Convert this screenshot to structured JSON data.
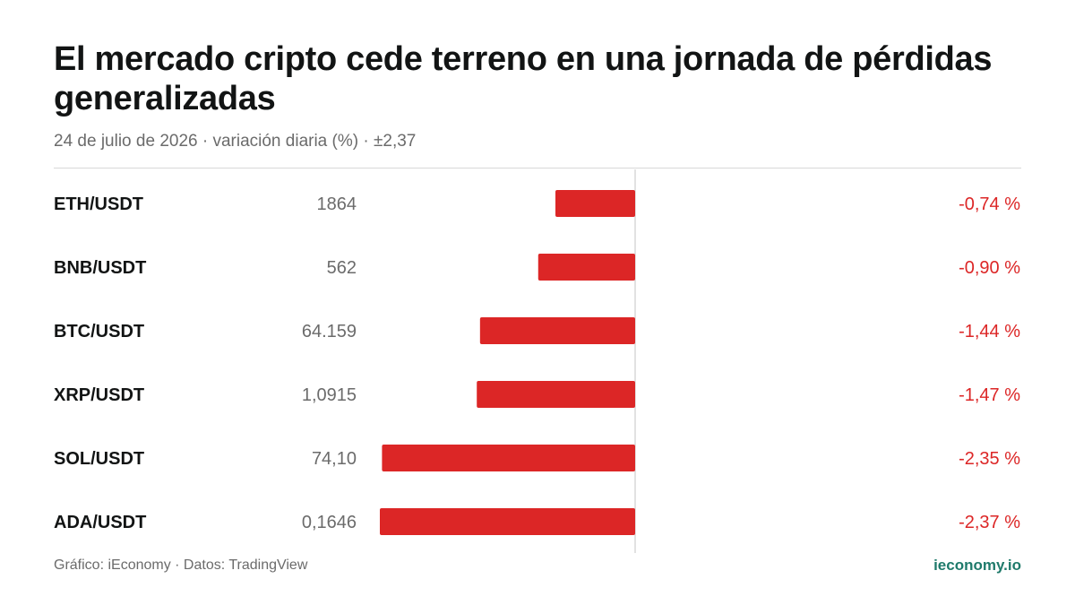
{
  "title": "El mercado cripto cede terreno en una jornada de pérdidas generalizadas",
  "subtitle": "24 de julio de 2026 · variación diaria (%) · ±2,37",
  "footer": {
    "source": "Gráfico: iEconomy · Datos: TradingView",
    "brand": "ieconomy.io"
  },
  "colors": {
    "negative": "#dc2626",
    "brand": "#1f7a6b",
    "zero_line": "#d9d9d9"
  },
  "chart_data": {
    "type": "bar",
    "orientation": "horizontal",
    "categories": [
      "ETH/USDT",
      "BNB/USDT",
      "BTC/USDT",
      "XRP/USDT",
      "SOL/USDT",
      "ADA/USDT"
    ],
    "prices": [
      "1864",
      "562",
      "64.159",
      "1,0915",
      "74,10",
      "0,1646"
    ],
    "values": [
      -0.74,
      -0.9,
      -1.44,
      -1.47,
      -2.35,
      -2.37
    ],
    "value_labels": [
      "-0,74 %",
      "-0,90 %",
      "-1,44 %",
      "-1,47 %",
      "-2,35 %",
      "-2,37 %"
    ],
    "xlim": [
      -2.37,
      2.37
    ],
    "unit": "%",
    "grid": false,
    "legend": "none"
  }
}
